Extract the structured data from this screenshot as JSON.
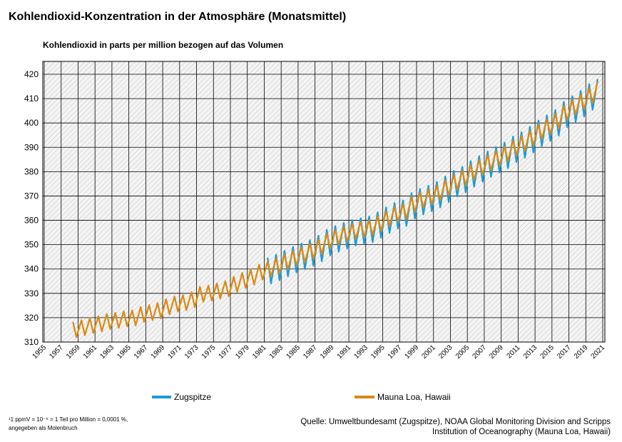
{
  "chart_data": {
    "type": "line",
    "title": "Kohlendioxid-Konzentration in der Atmosphäre (Monatsmittel)",
    "subtitle": "Kohlendioxid in parts per million bezogen auf das Volumen",
    "footnote": [
      "¹1 ppmV = 10⁻⁶ = 1 Teil pro Million = 0,0001 %,",
      "angegeben als Molenbruch"
    ],
    "source": [
      "Quelle: Umweltbundesamt (Zugspitze), NOAA Global Monitoring Division and Scripps",
      "Institution of Oceanography  (Mauna Loa, Hawaii)"
    ],
    "grid": true,
    "xlim": [
      1955,
      2021
    ],
    "xticks": [
      1955,
      1957,
      1959,
      1961,
      1963,
      1965,
      1967,
      1969,
      1971,
      1973,
      1975,
      1977,
      1979,
      1981,
      1983,
      1985,
      1987,
      1989,
      1991,
      1993,
      1995,
      1997,
      1999,
      2001,
      2003,
      2005,
      2007,
      2009,
      2011,
      2013,
      2015,
      2017,
      2019,
      2021
    ],
    "ylim": [
      310,
      420
    ],
    "yticks": [
      310,
      320,
      330,
      340,
      350,
      360,
      370,
      380,
      390,
      400,
      410,
      420
    ],
    "x": [
      1958.4,
      1958.8,
      1959.4,
      1959.8,
      1960.4,
      1960.8,
      1961.4,
      1961.8,
      1962.4,
      1962.8,
      1963.4,
      1963.8,
      1964.4,
      1964.8,
      1965.4,
      1965.8,
      1966.4,
      1966.8,
      1967.4,
      1967.8,
      1968.4,
      1968.8,
      1969.4,
      1969.8,
      1970.4,
      1970.8,
      1971.4,
      1971.8,
      1972.4,
      1972.8,
      1973.4,
      1973.8,
      1974.4,
      1974.8,
      1975.4,
      1975.8,
      1976.4,
      1976.8,
      1977.4,
      1977.8,
      1978.4,
      1978.8,
      1979.4,
      1979.8,
      1980.4,
      1980.8,
      1981.4,
      1981.8,
      1982.4,
      1982.8,
      1983.4,
      1983.8,
      1984.4,
      1984.8,
      1985.4,
      1985.8,
      1986.4,
      1986.8,
      1987.4,
      1987.8,
      1988.4,
      1988.8,
      1989.4,
      1989.8,
      1990.4,
      1990.8,
      1991.4,
      1991.8,
      1992.4,
      1992.8,
      1993.4,
      1993.8,
      1994.4,
      1994.8,
      1995.4,
      1995.8,
      1996.4,
      1996.8,
      1997.4,
      1997.8,
      1998.4,
      1998.8,
      1999.4,
      1999.8,
      2000.4,
      2000.8,
      2001.4,
      2001.8,
      2002.4,
      2002.8,
      2003.4,
      2003.8,
      2004.4,
      2004.8,
      2005.4,
      2005.8,
      2006.4,
      2006.8,
      2007.4,
      2007.8,
      2008.4,
      2008.8,
      2009.4,
      2009.8,
      2010.4,
      2010.8,
      2011.4,
      2011.8,
      2012.4,
      2012.8,
      2013.4,
      2013.8,
      2014.4,
      2014.8,
      2015.4,
      2015.8,
      2016.4,
      2016.8,
      2017.4,
      2017.8,
      2018.4,
      2018.8,
      2019.4,
      2019.8,
      2020.4
    ],
    "series": [
      {
        "name": "Zugspitze",
        "color": "#1a9bd7",
        "values": [
          null,
          null,
          null,
          null,
          null,
          null,
          null,
          null,
          null,
          null,
          null,
          null,
          null,
          null,
          null,
          null,
          null,
          null,
          null,
          null,
          null,
          null,
          null,
          null,
          null,
          null,
          null,
          null,
          null,
          null,
          null,
          null,
          null,
          null,
          null,
          null,
          null,
          null,
          null,
          null,
          null,
          null,
          null,
          null,
          null,
          null,
          344.6,
          334.1,
          345.9,
          335.4,
          347.5,
          337.0,
          349.1,
          338.6,
          350.5,
          340.0,
          351.9,
          341.4,
          353.7,
          343.2,
          356.1,
          345.6,
          357.6,
          347.1,
          358.9,
          348.4,
          360.1,
          349.6,
          360.9,
          350.4,
          361.6,
          351.1,
          363.3,
          352.8,
          365.3,
          354.8,
          367.1,
          356.6,
          368.2,
          357.7,
          371.2,
          360.7,
          372.9,
          362.4,
          374.2,
          363.7,
          375.8,
          365.3,
          378.0,
          367.5,
          380.3,
          369.8,
          382.0,
          371.5,
          384.3,
          373.8,
          386.4,
          375.9,
          388.3,
          377.8,
          390.1,
          379.6,
          391.9,
          381.4,
          394.4,
          383.9,
          396.2,
          385.7,
          398.4,
          387.9,
          401.0,
          390.5,
          403.1,
          392.6,
          405.3,
          394.8,
          408.7,
          398.2,
          411.0,
          400.5,
          413.2,
          402.7,
          415.9,
          405.4,
          418.0
        ]
      },
      {
        "name": "Mauna Loa, Hawaii",
        "color": "#d98a12",
        "values": [
          318.2,
          312.0,
          319.0,
          312.8,
          319.9,
          313.7,
          320.6,
          314.4,
          321.5,
          315.3,
          322.0,
          315.8,
          322.6,
          316.4,
          323.0,
          316.8,
          324.4,
          318.2,
          325.2,
          319.0,
          326.0,
          319.8,
          327.6,
          321.4,
          328.7,
          322.5,
          329.3,
          323.1,
          330.5,
          324.3,
          332.7,
          326.5,
          333.2,
          327.0,
          334.1,
          327.9,
          335.0,
          328.8,
          336.8,
          330.6,
          338.4,
          332.2,
          339.8,
          333.6,
          341.8,
          335.6,
          343.1,
          336.9,
          344.4,
          338.2,
          346.0,
          339.8,
          347.6,
          341.4,
          349.0,
          342.8,
          350.4,
          344.2,
          352.2,
          346.0,
          354.6,
          348.4,
          356.1,
          349.9,
          357.4,
          351.2,
          358.6,
          352.4,
          359.4,
          353.2,
          360.1,
          353.9,
          361.8,
          355.6,
          363.8,
          357.6,
          365.6,
          359.4,
          366.7,
          360.5,
          369.7,
          363.5,
          371.4,
          365.2,
          372.7,
          366.5,
          374.3,
          368.1,
          376.5,
          370.3,
          378.8,
          372.6,
          380.5,
          374.3,
          382.8,
          376.6,
          384.9,
          378.7,
          386.8,
          380.6,
          388.6,
          382.4,
          390.4,
          384.2,
          392.9,
          386.7,
          394.7,
          388.5,
          396.9,
          390.7,
          399.5,
          393.3,
          401.6,
          395.4,
          403.8,
          397.6,
          407.2,
          401.0,
          409.5,
          403.3,
          411.7,
          405.5,
          414.4,
          408.2,
          417.0
        ]
      }
    ]
  }
}
